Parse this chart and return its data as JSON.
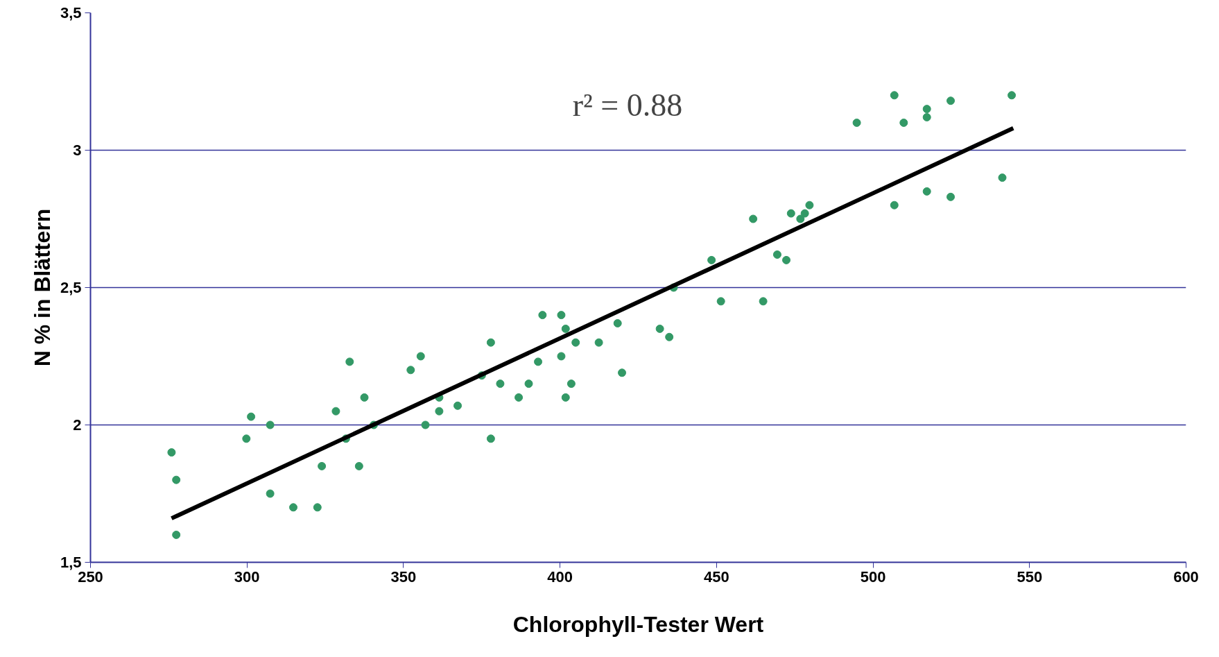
{
  "chart_data": {
    "type": "scatter",
    "xlabel": "Chlorophyll-Tester Wert",
    "ylabel": "N % in Blättern",
    "xlim": [
      250,
      600
    ],
    "ylim": [
      1.5,
      3.5
    ],
    "xticks": [
      250,
      300,
      350,
      400,
      450,
      500,
      550,
      600
    ],
    "yticks": [
      {
        "value": 1.5,
        "label": "1,5"
      },
      2,
      {
        "value": 2.5,
        "label": "2,5"
      },
      3,
      {
        "value": 3.5,
        "label": "3,5"
      }
    ],
    "grid": "y",
    "annotations": [
      "r² = 0.88"
    ],
    "series": [
      {
        "marker": "circle",
        "color": "#339966",
        "x": [
          275.9,
          277.4,
          277.4,
          299.8,
          301.3,
          307.4,
          307.4,
          314.8,
          322.5,
          323.9,
          328.4,
          331.6,
          332.8,
          335.8,
          337.5,
          340.5,
          352.3,
          355.5,
          357.0,
          361.4,
          361.4,
          367.3,
          375.0,
          377.9,
          377.9,
          380.9,
          386.8,
          390.0,
          393.0,
          394.4,
          400.4,
          400.4,
          401.8,
          401.8,
          403.6,
          405.0,
          412.4,
          418.4,
          419.8,
          431.9,
          434.9,
          436.3,
          448.4,
          451.4,
          461.7,
          464.9,
          469.4,
          472.3,
          473.8,
          476.8,
          478.2,
          479.7,
          494.8,
          506.8,
          506.8,
          509.8,
          517.2,
          517.2,
          517.2,
          524.8,
          524.8,
          541.3,
          544.3
        ],
        "values": [
          1.9,
          1.8,
          1.6,
          1.95,
          2.03,
          2.0,
          1.75,
          1.7,
          1.7,
          1.85,
          2.05,
          1.95,
          2.23,
          1.85,
          2.1,
          2.0,
          2.2,
          2.25,
          2.0,
          2.1,
          2.05,
          2.07,
          2.18,
          2.3,
          1.95,
          2.15,
          2.1,
          2.15,
          2.23,
          2.4,
          2.4,
          2.25,
          2.35,
          2.1,
          2.15,
          2.3,
          2.3,
          2.37,
          2.19,
          2.35,
          2.32,
          2.5,
          2.6,
          2.45,
          2.75,
          2.45,
          2.62,
          2.6,
          2.77,
          2.75,
          2.77,
          2.8,
          3.1,
          3.2,
          2.8,
          3.1,
          3.15,
          3.12,
          2.85,
          3.18,
          2.83,
          2.9,
          3.2
        ]
      },
      {
        "type": "line",
        "color": "#000000",
        "x": [
          275.9,
          544.8
        ],
        "values": [
          1.66,
          3.08
        ]
      }
    ]
  }
}
